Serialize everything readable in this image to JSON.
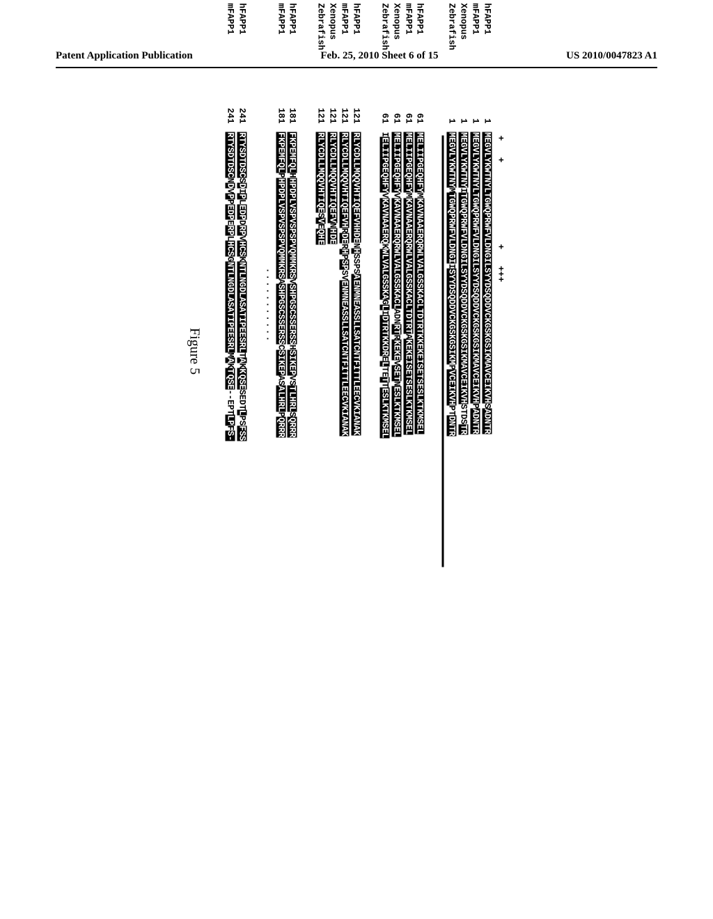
{
  "header": {
    "left": "Patent Application Publication",
    "center": "Feb. 25, 2010  Sheet 6 of 15",
    "right": "US 2010/0047823 A1"
  },
  "figure_label": "Figure 5",
  "markers": "+   +               +   +++",
  "dots_marker": "...........",
  "blocks": [
    {
      "rows": [
        {
          "label": "hFAPP1",
          "pos": "1",
          "segments": [
            {
              "t": "MEGVLYKWTNYLTGWQPRWFVLDNGILSYYDSQDDVCKGSKGSIKMAVCEIKVH",
              "hl": true
            },
            {
              "t": "S",
              "hl": false
            },
            {
              "t": "ADNTR",
              "hl": true
            }
          ]
        },
        {
          "label": "mFAPP1",
          "pos": "1",
          "segments": [
            {
              "t": "MEGVLYKWTNYLTGWQPRWFVLDNGILSYYDSQDDVCKGSKGSIKMAVCEIKVH",
              "hl": true
            },
            {
              "t": "P",
              "hl": false
            },
            {
              "t": "ADNTR",
              "hl": true
            }
          ]
        },
        {
          "label": "Xenopus",
          "pos": "1",
          "segments": [
            {
              "t": "MEGVLYKWTNY",
              "hl": true
            },
            {
              "t": "I",
              "hl": false
            },
            {
              "t": "TGWQPRWFVLDNGILSYYDSQDDVCKGSKGSIKMAVCEIKVH",
              "hl": true
            },
            {
              "t": "STD",
              "hl": false
            },
            {
              "t": "S",
              "hl": false
            },
            {
              "t": "TR",
              "hl": true
            }
          ]
        },
        {
          "label": "Zebrafish",
          "pos": "1",
          "segments": [
            {
              "t": "MEGVLYKWTNY",
              "hl": true
            },
            {
              "t": "M",
              "hl": false
            },
            {
              "t": "TGWQPRWFVLDNGI",
              "hl": true
            },
            {
              "t": "I",
              "hl": false
            },
            {
              "t": "SYYDSQDDVCKGSKGSIKM",
              "hl": true
            },
            {
              "t": "P",
              "hl": false
            },
            {
              "t": "VCEIKVH",
              "hl": true
            },
            {
              "t": "PT",
              "hl": false
            },
            {
              "t": "DNTR",
              "hl": true
            }
          ]
        }
      ],
      "underline_after": true
    },
    {
      "rows": [
        {
          "label": "hFAPP1",
          "pos": "61",
          "segments": [
            {
              "t": "MELIIPGEQHFY",
              "hl": true
            },
            {
              "t": "M",
              "hl": false
            },
            {
              "t": "KAVNAAERQRWLVALGSSKACLTDTRTKKEKEISETSESLKTKMSEL",
              "hl": true
            }
          ]
        },
        {
          "label": "mFAPP1",
          "pos": "61",
          "segments": [
            {
              "t": "MELIIPGEQHFY",
              "hl": true
            },
            {
              "t": "M",
              "hl": false
            },
            {
              "t": "KAVNAAERQRWLVALGSSKACLTDTRT",
              "hl": true
            },
            {
              "t": "A",
              "hl": false
            },
            {
              "t": "KEKEISETSESLKTKMSEL",
              "hl": true
            }
          ]
        },
        {
          "label": "Xenopus",
          "pos": "61",
          "segments": [
            {
              "t": "MELIIPGEQHFY",
              "hl": true
            },
            {
              "t": "V",
              "hl": false
            },
            {
              "t": "KAVNAAERQRWLVALGSSKACL",
              "hl": true
            },
            {
              "t": "AD",
              "hl": false
            },
            {
              "t": "N",
              "hl": false
            },
            {
              "t": "RT",
              "hl": true
            },
            {
              "t": "R",
              "hl": false
            },
            {
              "t": "KEKE",
              "hl": true
            },
            {
              "t": "V",
              "hl": false
            },
            {
              "t": "SET",
              "hl": true
            },
            {
              "t": "N",
              "hl": false
            },
            {
              "t": "ESLKTKMSEL",
              "hl": true
            }
          ]
        },
        {
          "label": "Zebrafish",
          "pos": "61",
          "segments": [
            {
              "t": "I",
              "hl": false
            },
            {
              "t": "ELIIPGEQHFY",
              "hl": true
            },
            {
              "t": "V",
              "hl": false
            },
            {
              "t": "KAVNAAERQ",
              "hl": true
            },
            {
              "t": "K",
              "hl": false
            },
            {
              "t": "WLVALGSSKA",
              "hl": true
            },
            {
              "t": "G",
              "hl": false
            },
            {
              "t": "L",
              "hl": true
            },
            {
              "t": "I",
              "hl": false
            },
            {
              "t": "DTRTKKDR",
              "hl": true
            },
            {
              "t": "E",
              "hl": false
            },
            {
              "t": "L",
              "hl": true
            },
            {
              "t": "TE",
              "hl": false
            },
            {
              "t": "T",
              "hl": true
            },
            {
              "t": "T",
              "hl": false
            },
            {
              "t": "ESLKTKMSEL",
              "hl": true
            }
          ]
        }
      ]
    },
    {
      "rows": [
        {
          "label": "hFAPP1",
          "pos": "121",
          "segments": [
            {
              "t": "RLYCDLLMQQVHTIQEFVHHDE",
              "hl": true
            },
            {
              "t": "N",
              "hl": false
            },
            {
              "t": "H",
              "hl": true
            },
            {
              "t": "SSPS",
              "hl": false
            },
            {
              "t": "A",
              "hl": true
            },
            {
              "t": "ENMNEASSLLSATCNTFITTLEECVKIANAK",
              "hl": true
            }
          ]
        },
        {
          "label": "mFAPP1",
          "pos": "121",
          "segments": [
            {
              "t": "RLYCDLLMQQVHTIQEFVH",
              "hl": true
            },
            {
              "t": "R",
              "hl": false
            },
            {
              "t": "DE",
              "hl": true
            },
            {
              "t": "R",
              "hl": false
            },
            {
              "t": "H",
              "hl": true
            },
            {
              "t": "P",
              "hl": false
            },
            {
              "t": "SP",
              "hl": true
            },
            {
              "t": "SV",
              "hl": false
            },
            {
              "t": "ENMNEASSLLSATCNTFITTLEECVKIANAK",
              "hl": true
            }
          ]
        },
        {
          "label": "Xenopus",
          "pos": "121",
          "segments": [
            {
              "t": "RLYCDLLMQQVHTIQEFV",
              "hl": true
            },
            {
              "t": "N",
              "hl": false
            },
            {
              "t": "H",
              "hl": true
            },
            {
              "t": "DE",
              "hl": true
            }
          ]
        },
        {
          "label": "Zebrafish",
          "pos": "121",
          "segments": [
            {
              "t": "RLYCDLLMQQVHTIQE",
              "hl": true
            },
            {
              "t": "S",
              "hl": false
            },
            {
              "t": "V",
              "hl": true
            },
            {
              "t": "E",
              "hl": false
            },
            {
              "t": "QH",
              "hl": true
            },
            {
              "t": "E",
              "hl": true
            }
          ]
        }
      ]
    },
    {
      "rows": [
        {
          "label": "hFAPP1",
          "pos": "181",
          "segments": [
            {
              "t": "FKPEMFQL",
              "hl": true
            },
            {
              "t": "H",
              "hl": false
            },
            {
              "t": "HPDPLVSPVSPSPVQMMKRS",
              "hl": true
            },
            {
              "t": "V",
              "hl": false
            },
            {
              "t": "SHPGSCSSERSS",
              "hl": true
            },
            {
              "t": "H",
              "hl": false
            },
            {
              "t": "SIKEP",
              "hl": true
            },
            {
              "t": "VS",
              "hl": false
            },
            {
              "t": "T",
              "hl": true
            },
            {
              "t": "LHRL",
              "hl": true
            },
            {
              "t": "S",
              "hl": false
            },
            {
              "t": "QRRR",
              "hl": true
            }
          ]
        },
        {
          "label": "mFAPP1",
          "pos": "181",
          "segments": [
            {
              "t": "FKPEMFQL",
              "hl": true
            },
            {
              "t": "P",
              "hl": false
            },
            {
              "t": "HPDPLVSPVSPSPVQMMKRS",
              "hl": true
            },
            {
              "t": "A",
              "hl": false
            },
            {
              "t": "SHPGSCSSERSS",
              "hl": true
            },
            {
              "t": "C",
              "hl": false
            },
            {
              "t": "SIKEP",
              "hl": true
            },
            {
              "t": "AS",
              "hl": false
            },
            {
              "t": "A",
              "hl": true
            },
            {
              "t": "LHRL",
              "hl": true
            },
            {
              "t": "P",
              "hl": false
            },
            {
              "t": "QRRR",
              "hl": true
            }
          ]
        }
      ],
      "dots_after": true
    },
    {
      "rows": [
        {
          "label": "hFAPP1",
          "pos": "241",
          "segments": [
            {
              "t": "RTYSDTDSC",
              "hl": true
            },
            {
              "t": "S",
              "hl": false
            },
            {
              "t": "D",
              "hl": true
            },
            {
              "t": "I",
              "hl": false
            },
            {
              "t": "P",
              "hl": true
            },
            {
              "t": "L",
              "hl": false
            },
            {
              "t": "EDP",
              "hl": true
            },
            {
              "t": "D",
              "hl": false
            },
            {
              "t": "RP",
              "hl": true
            },
            {
              "t": "V",
              "hl": false
            },
            {
              "t": "HCS",
              "hl": true
            },
            {
              "t": "K",
              "hl": false
            },
            {
              "t": "NTLNGDLASATIPEESRL",
              "hl": true
            },
            {
              "t": "T",
              "hl": false
            },
            {
              "t": "A",
              "hl": true
            },
            {
              "t": "K",
              "hl": false
            },
            {
              "t": "K",
              "hl": true
            },
            {
              "t": "QSE",
              "hl": true
            },
            {
              "t": "SEDT",
              "hl": false
            },
            {
              "t": "L",
              "hl": true
            },
            {
              "t": "PS",
              "hl": false
            },
            {
              "t": "FSS",
              "hl": true
            }
          ]
        },
        {
          "label": "mFAPP1",
          "pos": "241",
          "segments": [
            {
              "t": "RTYSDTDSC",
              "hl": true
            },
            {
              "t": "N",
              "hl": false
            },
            {
              "t": "D",
              "hl": true
            },
            {
              "t": "V",
              "hl": false
            },
            {
              "t": "P",
              "hl": true
            },
            {
              "t": "P",
              "hl": false
            },
            {
              "t": "EDP",
              "hl": true
            },
            {
              "t": "E",
              "hl": false
            },
            {
              "t": "RP",
              "hl": true
            },
            {
              "t": "L",
              "hl": false
            },
            {
              "t": "HCS",
              "hl": true
            },
            {
              "t": "G",
              "hl": false
            },
            {
              "t": "NTLNGDLASATIPEESRL",
              "hl": true
            },
            {
              "t": "M",
              "hl": false
            },
            {
              "t": "A",
              "hl": true
            },
            {
              "t": "K",
              "hl": false
            },
            {
              "t": "T",
              "hl": true
            },
            {
              "t": "QSE",
              "hl": true
            },
            {
              "t": "--EP",
              "hl": false
            },
            {
              "t": "T",
              "hl": false
            },
            {
              "t": "LP",
              "hl": true
            },
            {
              "t": "F",
              "hl": false
            },
            {
              "t": "S-",
              "hl": true
            }
          ]
        }
      ]
    }
  ]
}
